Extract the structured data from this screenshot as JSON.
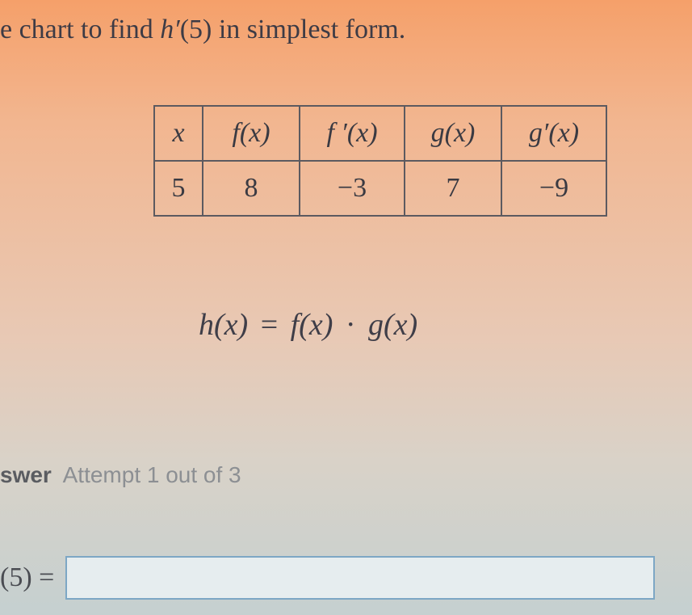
{
  "question": {
    "prefix": "e chart to find ",
    "expr_h": "h",
    "expr_prime": "′",
    "expr_arg": "(5)",
    "suffix": " in simplest form."
  },
  "table": {
    "headers": {
      "x": "x",
      "fx": "f(x)",
      "fpx": "f ′(x)",
      "gx": "g(x)",
      "gpx": "g′(x)"
    },
    "row": {
      "x": "5",
      "fx": "8",
      "fpx": "−3",
      "gx": "7",
      "gpx": "−9"
    },
    "border_color": "#5c5a60",
    "header_fontsize": 34,
    "cell_fontsize": 34
  },
  "formula": {
    "text_h": "h(x)",
    "text_eq": "=",
    "text_f": "f(x)",
    "text_dot": "·",
    "text_g": "g(x)"
  },
  "answer_section": {
    "label_bold": "swer",
    "attempt_text": "Attempt 1 out of 3"
  },
  "answer_input": {
    "lhs": "(5) =",
    "value": "",
    "placeholder": ""
  },
  "colors": {
    "text": "#3a3a42",
    "input_border": "#7da7c5",
    "input_bg": "#e6edef",
    "bg_top": "#f5a06a",
    "bg_bottom": "#c5d0d0"
  }
}
